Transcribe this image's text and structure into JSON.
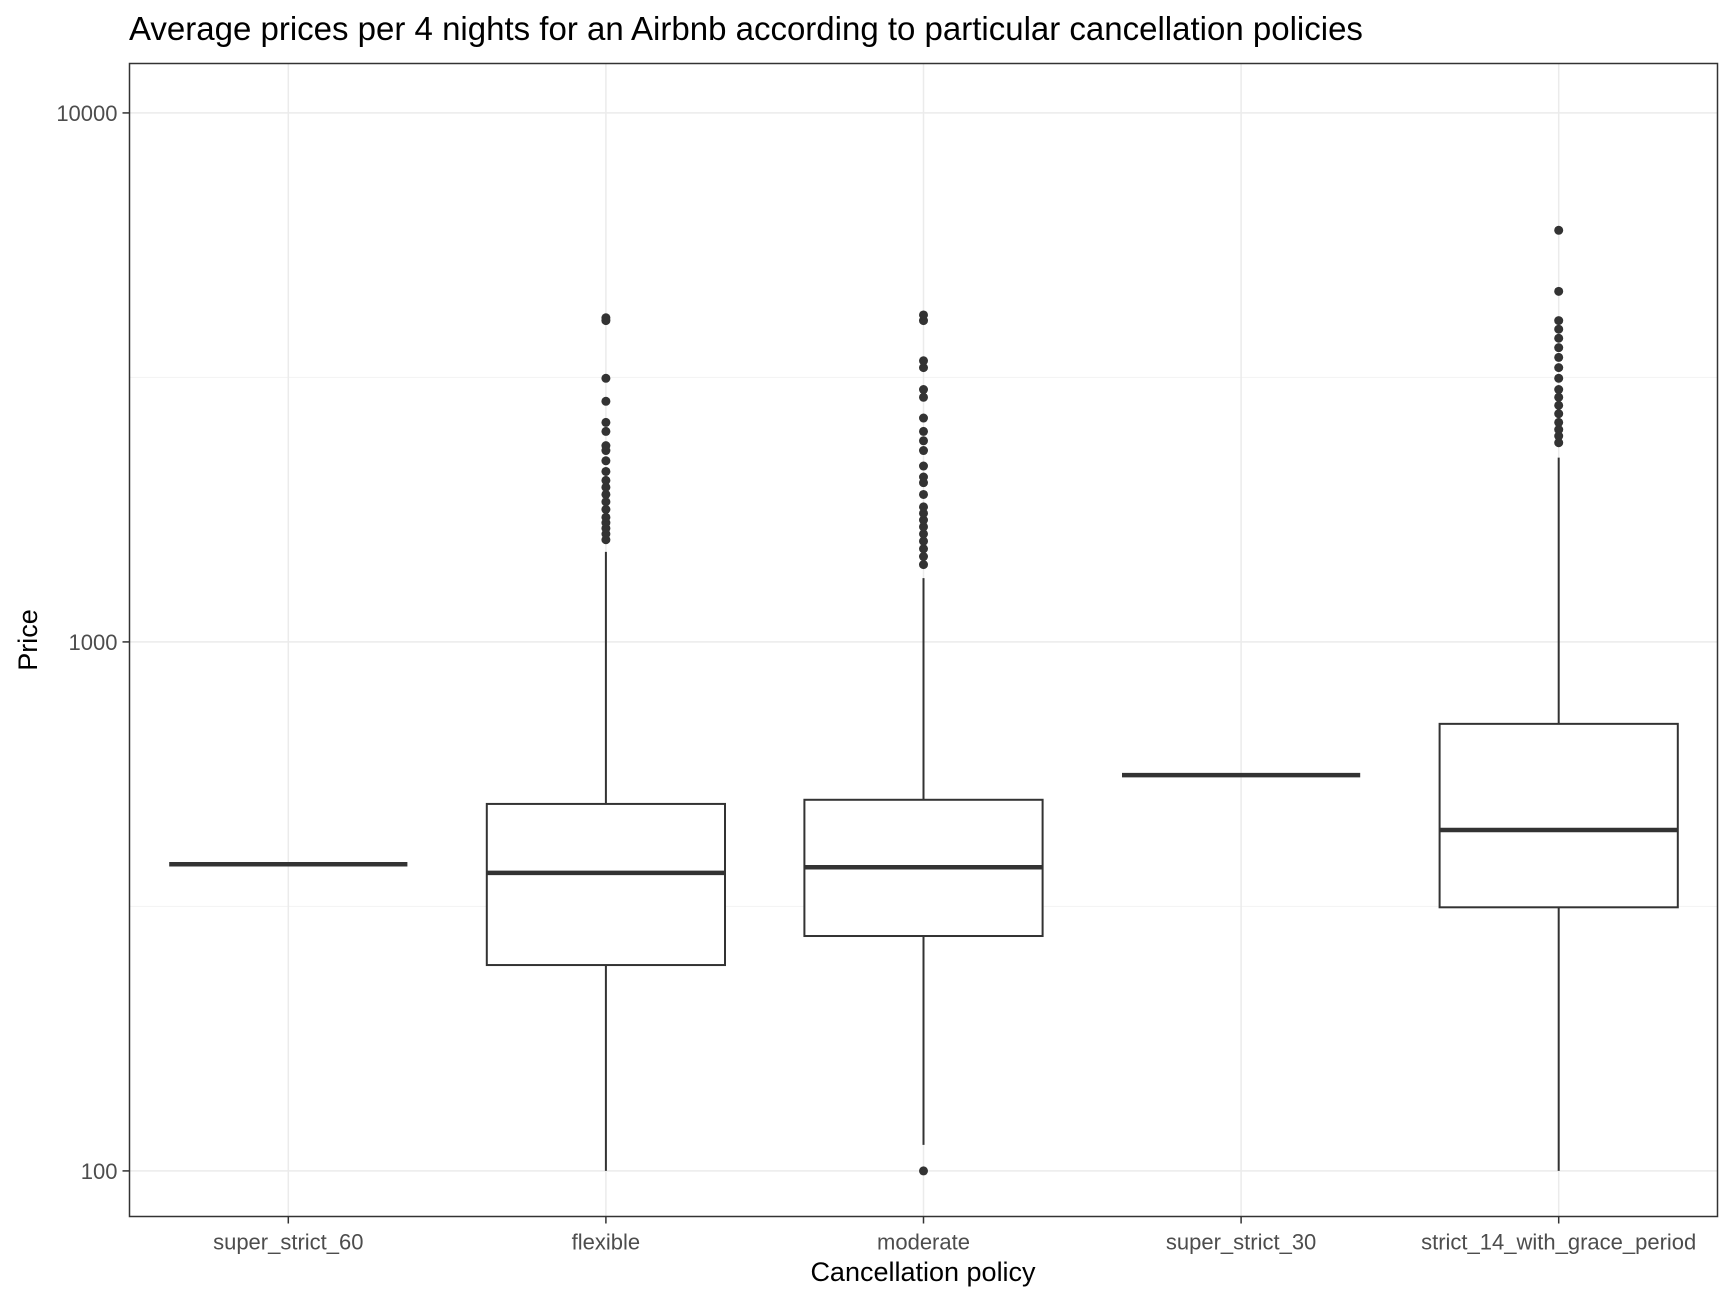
{
  "chart_data": {
    "type": "boxplot",
    "title": "Average prices per 4 nights for an Airbnb according to particular cancellation policies",
    "xlabel": "Cancellation policy",
    "ylabel": "Price",
    "y_scale": "log10",
    "ylim": [
      82,
      12400
    ],
    "y_ticks": [
      100,
      1000,
      10000
    ],
    "y_tick_labels": [
      "100",
      "1000",
      "10000"
    ],
    "grid": true,
    "categories": [
      "super_strict_60",
      "flexible",
      "moderate",
      "super_strict_30",
      "strict_14_with_grace_period"
    ],
    "boxes": [
      {
        "category": "super_strict_60",
        "min": 380,
        "q1": 380,
        "median": 380,
        "q3": 380,
        "max": 380,
        "outliers": []
      },
      {
        "category": "flexible",
        "min": 100,
        "q1": 245,
        "median": 366,
        "q3": 494,
        "max": 1480,
        "outliers": [
          1560,
          1600,
          1640,
          1680,
          1720,
          1780,
          1840,
          1900,
          1960,
          2020,
          2100,
          2200,
          2300,
          2350,
          2500,
          2600,
          2850,
          3150,
          4050,
          4100
        ]
      },
      {
        "category": "moderate",
        "min": 112,
        "q1": 278,
        "median": 375,
        "q3": 503,
        "max": 1320,
        "outliers": [
          100,
          1400,
          1450,
          1500,
          1550,
          1600,
          1650,
          1700,
          1750,
          1800,
          1900,
          2000,
          2050,
          2150,
          2300,
          2400,
          2500,
          2650,
          2900,
          3000,
          3300,
          3400,
          4050,
          4150
        ]
      },
      {
        "category": "super_strict_30",
        "min": 560,
        "q1": 560,
        "median": 560,
        "q3": 560,
        "max": 560,
        "outliers": []
      },
      {
        "category": "strict_14_with_grace_period",
        "min": 100,
        "q1": 315,
        "median": 441,
        "q3": 700,
        "max": 2230,
        "outliers": [
          2380,
          2450,
          2520,
          2600,
          2700,
          2800,
          2900,
          3000,
          3150,
          3300,
          3450,
          3600,
          3750,
          3900,
          4050,
          4600,
          6000
        ]
      }
    ]
  }
}
